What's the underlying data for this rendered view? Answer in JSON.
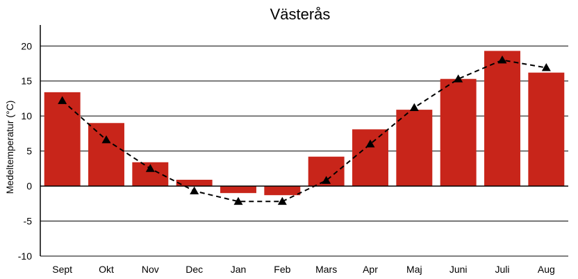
{
  "chart_data": {
    "type": "bar",
    "title": "Västerås",
    "xlabel": "",
    "ylabel": "Medeltemperatur (°C)",
    "categories": [
      "Sept",
      "Okt",
      "Nov",
      "Dec",
      "Jan",
      "Feb",
      "Mars",
      "Apr",
      "Maj",
      "Juni",
      "Juli",
      "Aug"
    ],
    "series": [
      {
        "type": "bar",
        "values": [
          13.4,
          9.0,
          3.4,
          0.9,
          -1.0,
          -1.3,
          4.2,
          8.1,
          10.9,
          15.3,
          19.3,
          16.2
        ],
        "color": "#c8251a"
      },
      {
        "type": "line",
        "style": "dashed",
        "marker": "triangle",
        "values": [
          12.2,
          6.6,
          2.5,
          -0.7,
          -2.2,
          -2.2,
          0.8,
          6.0,
          11.2,
          15.3,
          18.0,
          16.9
        ],
        "color": "#000000"
      }
    ],
    "ylim": [
      -10,
      23
    ],
    "yticks": [
      -10,
      -5,
      0,
      5,
      10,
      15,
      20
    ],
    "ytick_labels": [
      "-10",
      "-5",
      "0",
      "5",
      "10",
      "15",
      "20"
    ],
    "grid": true,
    "legend": "none"
  }
}
